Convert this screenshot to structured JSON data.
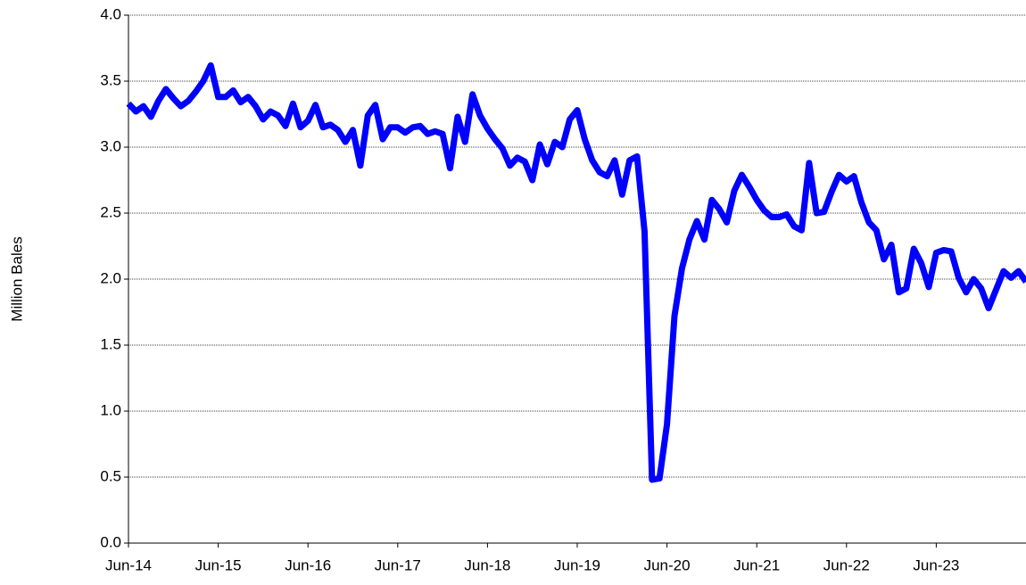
{
  "chart_data": {
    "type": "line",
    "y_label": "Million Bales",
    "categories": [
      "Jun-14",
      null,
      null,
      null,
      null,
      null,
      null,
      null,
      null,
      null,
      null,
      null,
      "Jun-15",
      null,
      null,
      null,
      null,
      null,
      null,
      null,
      null,
      null,
      null,
      null,
      "Jun-16",
      null,
      null,
      null,
      null,
      null,
      null,
      null,
      null,
      null,
      null,
      null,
      "Jun-17",
      null,
      null,
      null,
      null,
      null,
      null,
      null,
      null,
      null,
      null,
      null,
      "Jun-18",
      null,
      null,
      null,
      null,
      null,
      null,
      null,
      null,
      null,
      null,
      null,
      "Jun-19",
      null,
      null,
      null,
      null,
      null,
      null,
      null,
      null,
      null,
      null,
      null,
      "Jun-20",
      null,
      null,
      null,
      null,
      null,
      null,
      null,
      null,
      null,
      null,
      null,
      "Jun-21",
      null,
      null,
      null,
      null,
      null,
      null,
      null,
      null,
      null,
      null,
      null,
      "Jun-22",
      null,
      null,
      null,
      null,
      null,
      null,
      null,
      null,
      null,
      null,
      null,
      "Jun-23",
      null,
      null,
      null,
      null,
      null,
      null,
      null,
      null,
      null,
      null,
      null,
      null
    ],
    "series": [
      {
        "name": "Million Bales",
        "color": "#0000ff",
        "values": [
          3.33,
          3.27,
          3.31,
          3.23,
          3.35,
          3.44,
          3.37,
          3.31,
          3.35,
          3.42,
          3.5,
          3.62,
          3.38,
          3.38,
          3.43,
          3.34,
          3.38,
          3.31,
          3.21,
          3.27,
          3.24,
          3.16,
          3.33,
          3.15,
          3.2,
          3.32,
          3.15,
          3.17,
          3.13,
          3.04,
          3.13,
          2.86,
          3.24,
          3.32,
          3.06,
          3.15,
          3.15,
          3.11,
          3.15,
          3.16,
          3.1,
          3.12,
          3.1,
          2.84,
          3.23,
          3.04,
          3.4,
          3.24,
          3.14,
          3.06,
          2.99,
          2.86,
          2.92,
          2.89,
          2.75,
          3.02,
          2.87,
          3.04,
          3.0,
          3.21,
          3.28,
          3.06,
          2.9,
          2.81,
          2.78,
          2.9,
          2.64,
          2.9,
          2.93,
          2.36,
          0.48,
          0.49,
          0.9,
          1.72,
          2.08,
          2.3,
          2.44,
          2.3,
          2.6,
          2.53,
          2.43,
          2.67,
          2.79,
          2.7,
          2.6,
          2.52,
          2.47,
          2.47,
          2.49,
          2.4,
          2.37,
          2.88,
          2.5,
          2.51,
          2.66,
          2.79,
          2.74,
          2.78,
          2.58,
          2.43,
          2.37,
          2.15,
          2.26,
          1.9,
          1.93,
          2.23,
          2.12,
          1.94,
          2.2,
          2.22,
          2.21,
          2.01,
          1.9,
          2.0,
          1.93,
          1.78,
          1.92,
          2.06,
          2.01,
          2.06,
          1.98
        ]
      }
    ],
    "ylim": [
      0,
      4
    ],
    "yticks": [
      {
        "value": 0,
        "label": "0.0"
      },
      0.5,
      {
        "value": 1,
        "label": "1.0"
      },
      1.5,
      {
        "value": 2,
        "label": "2.0"
      },
      2.5,
      {
        "value": 3,
        "label": "3.0"
      },
      3.5,
      {
        "value": 4,
        "label": "4.0"
      }
    ],
    "grid": true
  }
}
